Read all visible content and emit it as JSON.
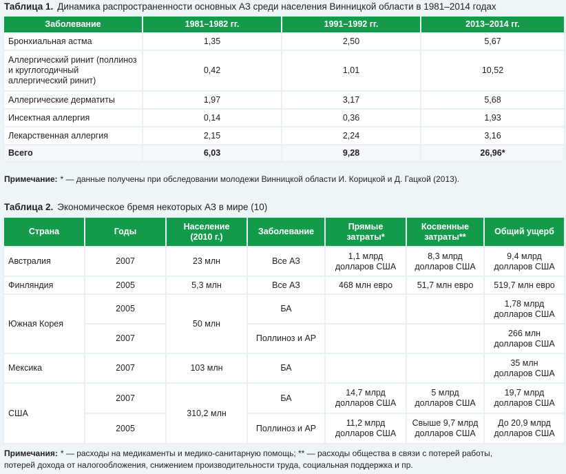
{
  "table1": {
    "label": "Таблица 1.",
    "caption": "Динамика распространенности основных АЗ среди населения Винницкой области в 1981–2014 годах",
    "headers": [
      "Заболевание",
      "1981–1982 гг.",
      "1991–1992 гг.",
      "2013–2014 гг."
    ],
    "rows": [
      {
        "name": "Бронхиальная астма",
        "v1": "1,35",
        "v2": "2,50",
        "v3": "5,67"
      },
      {
        "name": "Аллергический ринит (поллиноз и круглогодичный аллергический ринит)",
        "v1": "0,42",
        "v2": "1,01",
        "v3": "10,52"
      },
      {
        "name": "Аллергические дерматиты",
        "v1": "1,97",
        "v2": "3,17",
        "v3": "5,68"
      },
      {
        "name": "Инсектная аллергия",
        "v1": "0,14",
        "v2": "0,36",
        "v3": "1,93"
      },
      {
        "name": "Лекарственная аллергия",
        "v1": "2,15",
        "v2": "2,24",
        "v3": "3,16"
      },
      {
        "name": "Всего",
        "v1": "6,03",
        "v2": "9,28",
        "v3": "26,96*"
      }
    ]
  },
  "note1": {
    "label": "Примечание:",
    "text": "* — данные получены при обследовании молодежи Винницкой области И. Корицкой и Д. Гацкой (2013)."
  },
  "table2": {
    "label": "Таблица 2.",
    "caption": "Экономическое бремя некоторых АЗ в мире (10)",
    "headers": {
      "country": "Страна",
      "years": "Годы",
      "population_1": "Население",
      "population_2": "(2010 г.)",
      "disease": "Заболевание",
      "direct_1": "Прямые",
      "direct_2": "затраты*",
      "indirect_1": "Косвенные",
      "indirect_2": "затраты**",
      "total": "Общий ущерб"
    },
    "rows": {
      "australia": {
        "country": "Австралия",
        "year": "2007",
        "population": "23 млн",
        "disease": "Все АЗ",
        "direct_1": "1,1 млрд",
        "direct_2": "долларов США",
        "indirect_1": "8,3 млрд",
        "indirect_2": "долларов США",
        "total_1": "9,4 млрд",
        "total_2": "долларов США"
      },
      "finland": {
        "country": "Финляндия",
        "year": "2005",
        "population": "5,3 млн",
        "disease": "Все АЗ",
        "direct": "468 млн евро",
        "indirect": "51,7 млн евро",
        "total": "519,7 млн евро"
      },
      "korea": {
        "country": "Южная Корея",
        "population": "50 млн",
        "a": {
          "year": "2005",
          "disease": "БА",
          "total_1": "1,78 млрд",
          "total_2": "долларов США"
        },
        "b": {
          "year": "2007",
          "disease": "Поллиноз и АР",
          "total_1": "266 млн",
          "total_2": "долларов США"
        }
      },
      "mexico": {
        "country": "Мексика",
        "year": "2007",
        "population": "103 млн",
        "disease": "БА",
        "total_1": "35 млн",
        "total_2": "долларов США"
      },
      "usa": {
        "country": "США",
        "population": "310,2 млн",
        "a": {
          "year": "2007",
          "disease": "БА",
          "direct_1": "14,7 млрд",
          "direct_2": "долларов США",
          "indirect_1": "5 млрд",
          "indirect_2": "долларов США",
          "total_1": "19,7 млрд",
          "total_2": "долларов США"
        },
        "b": {
          "year": "2005",
          "disease": "Поллиноз и АР",
          "direct_1": "11,2 млрд",
          "direct_2": "долларов США",
          "indirect_1": "Свыше 9,7 млрд",
          "indirect_2": "долларов США",
          "total_1": "До 20,9 млрд",
          "total_2": "долларов США"
        }
      }
    }
  },
  "note2": {
    "label": "Примечания:",
    "line1": "* — расходы на медикаменты и медико-санитарную помощь; ** — расходы общества в связи с потерей работы,",
    "line2": "потерей дохода от налогообложения, снижением производительности труда, социальная поддержка и пр."
  }
}
